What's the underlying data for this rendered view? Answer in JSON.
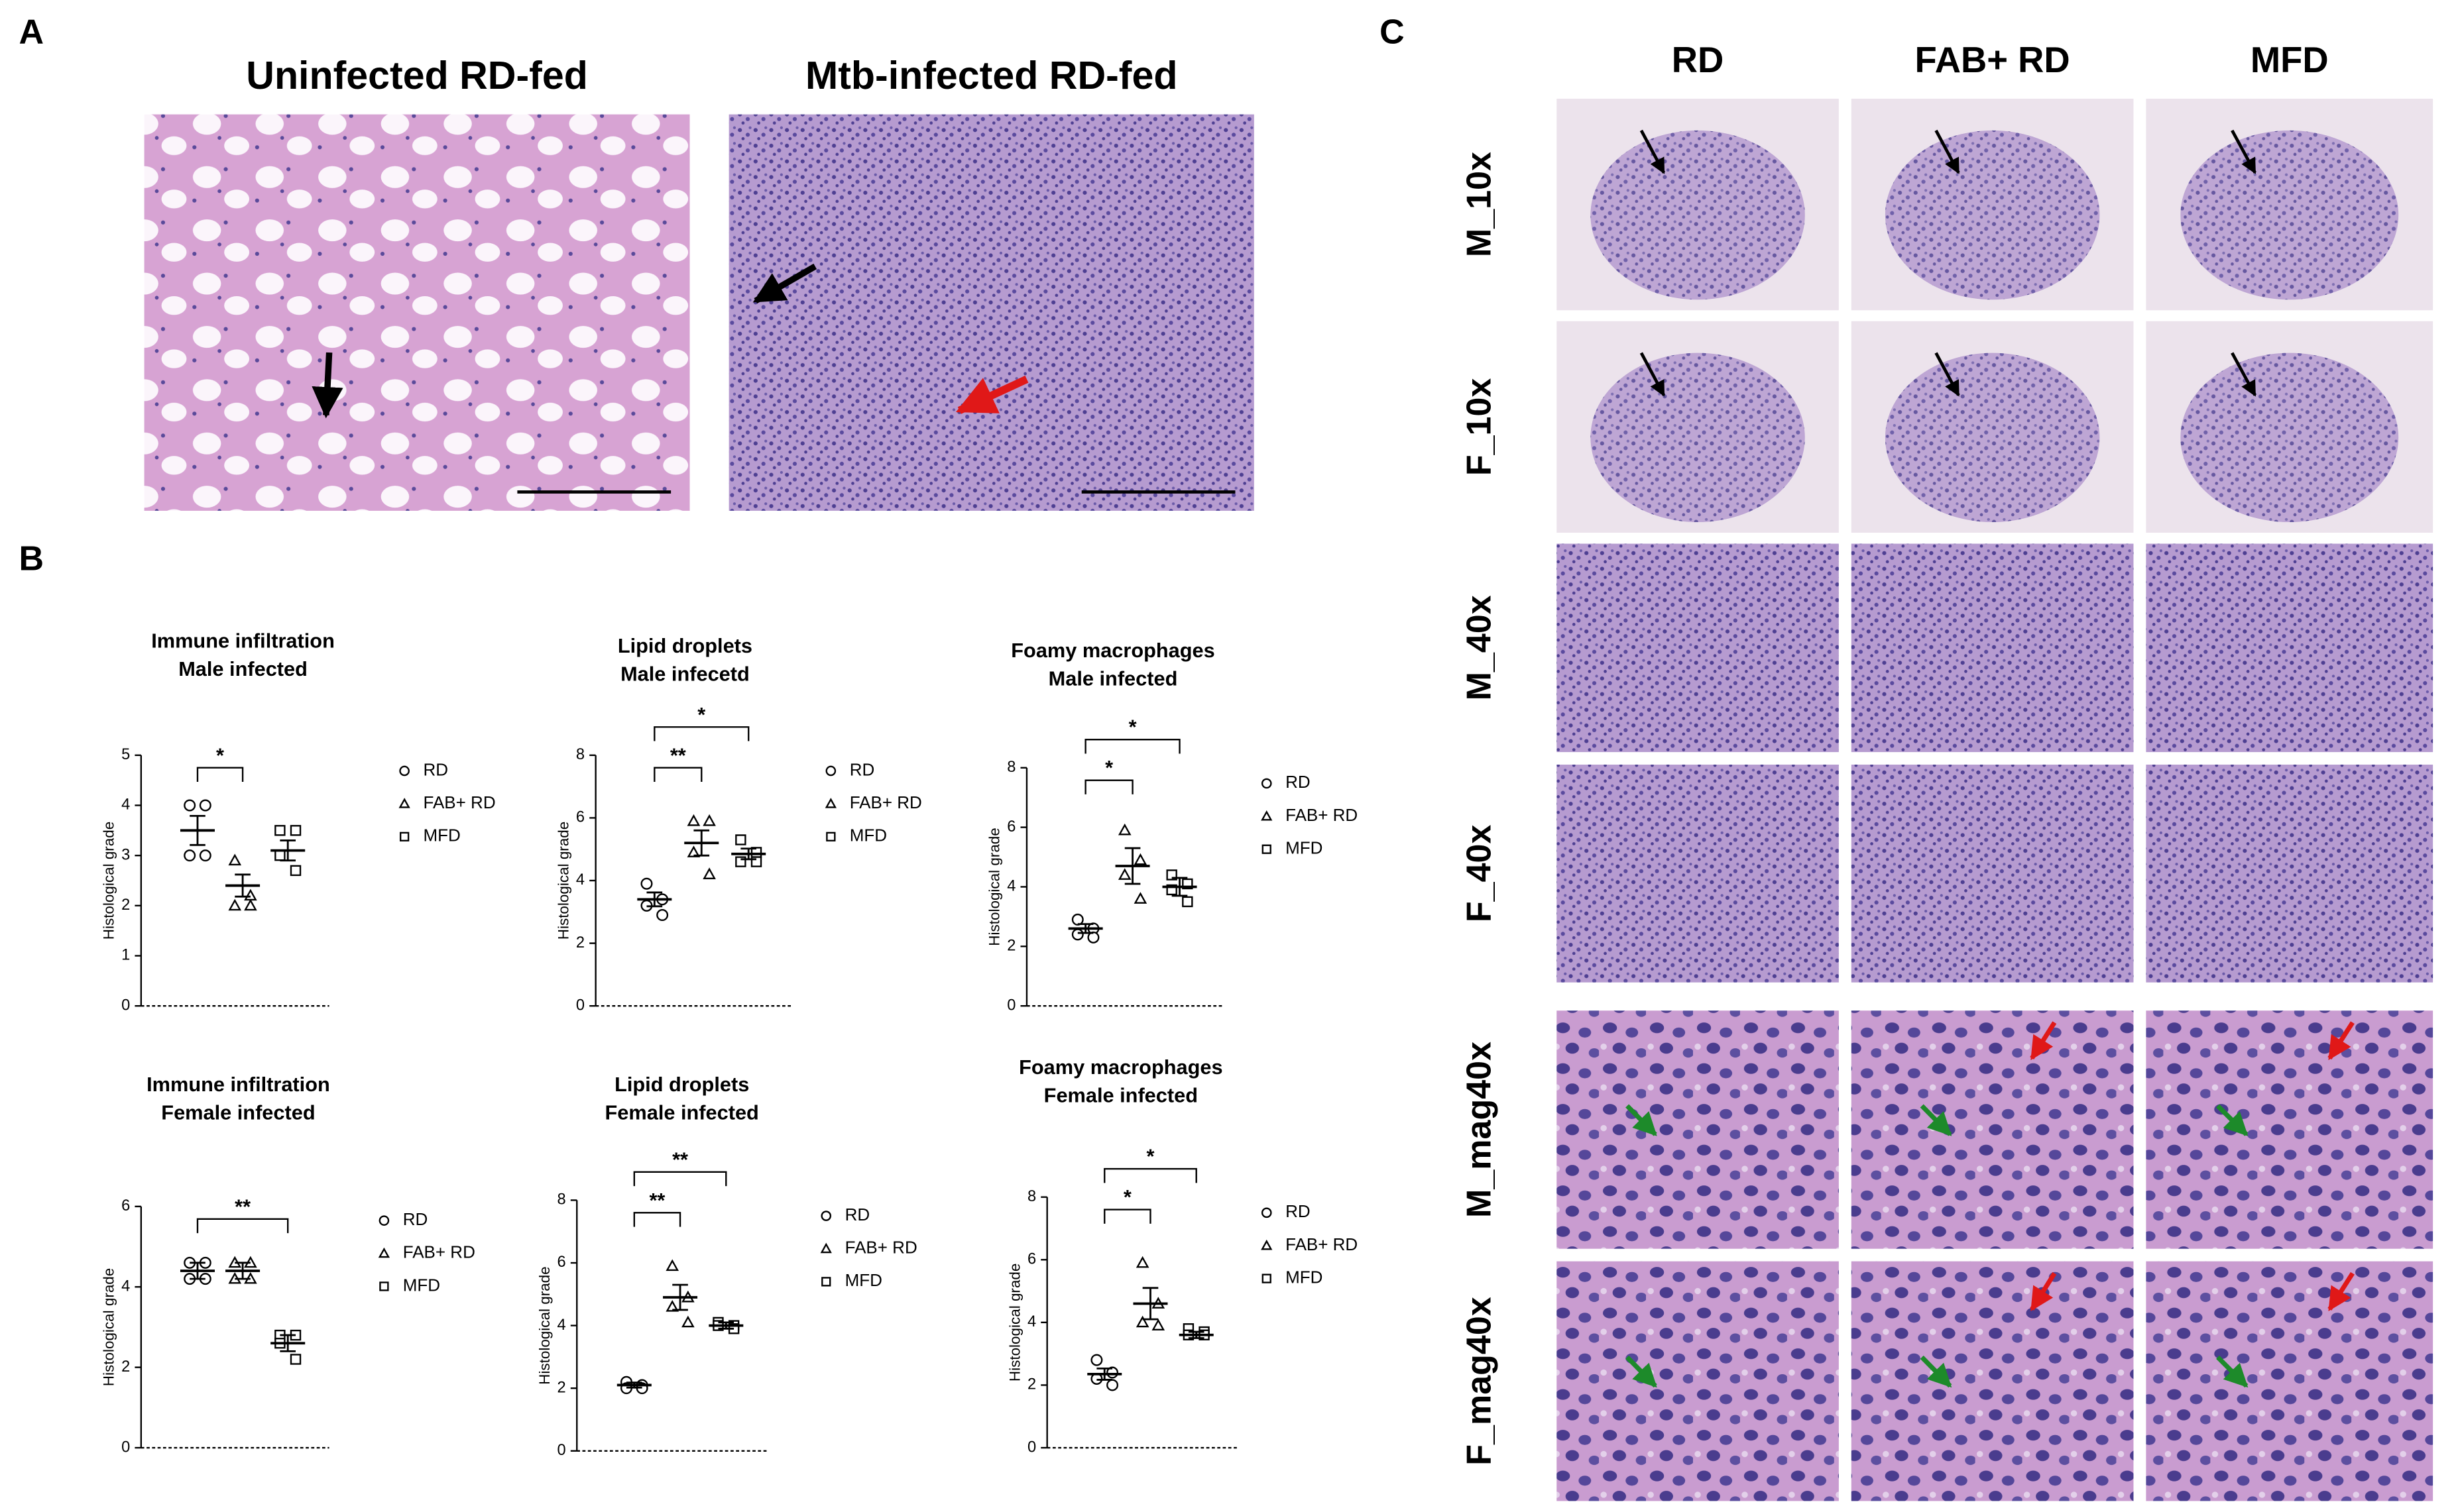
{
  "figure": {
    "panel_labels": [
      "A",
      "B",
      "C"
    ],
    "panel_a_titles": [
      "Uninfected RD-fed",
      "Mtb-infected RD-fed"
    ],
    "panel_c_columns": [
      "RD",
      "FAB+ RD",
      "MFD"
    ],
    "panel_c_rows": [
      "M_10x",
      "F_10x",
      "M_40x",
      "F_40x",
      "M_mag40x",
      "F_mag40x"
    ]
  },
  "chart_data": [
    {
      "type": "scatter",
      "title": "Immune infiltration",
      "subtitle": "Male infected",
      "y_label": "Histological grade",
      "ylim": [
        0,
        5
      ],
      "yticks": [
        0,
        1,
        2,
        3,
        4,
        5
      ],
      "groups": [
        {
          "name": "RD",
          "marker": "circle",
          "values": [
            4,
            4,
            3,
            3
          ],
          "mean": 3.5,
          "sem": 0.29
        },
        {
          "name": "FAB+ RD",
          "marker": "triangle",
          "values": [
            2.9,
            2.2,
            2,
            2
          ],
          "mean": 2.4,
          "sem": 0.22
        },
        {
          "name": "MFD",
          "marker": "square",
          "values": [
            3.5,
            3.5,
            3,
            2.7
          ],
          "mean": 3.1,
          "sem": 0.2
        }
      ],
      "comparisons": [
        {
          "groups": [
            "RD",
            "FAB+ RD"
          ],
          "label": "*"
        }
      ]
    },
    {
      "type": "scatter",
      "title": "Lipid droplets",
      "subtitle": "Male infecetd",
      "y_label": "Histological grade",
      "ylim": [
        0,
        8
      ],
      "yticks": [
        0,
        2,
        4,
        6,
        8
      ],
      "groups": [
        {
          "name": "RD",
          "marker": "circle",
          "values": [
            3.9,
            3.4,
            3.2,
            2.9
          ],
          "mean": 3.4,
          "sem": 0.22
        },
        {
          "name": "FAB+ RD",
          "marker": "triangle",
          "values": [
            5.9,
            5.9,
            4.9,
            4.2
          ],
          "mean": 5.2,
          "sem": 0.4
        },
        {
          "name": "MFD",
          "marker": "square",
          "values": [
            5.3,
            4.9,
            4.6,
            4.6
          ],
          "mean": 4.85,
          "sem": 0.17
        }
      ],
      "comparisons": [
        {
          "groups": [
            "RD",
            "FAB+ RD"
          ],
          "label": "**"
        },
        {
          "groups": [
            "RD",
            "MFD"
          ],
          "label": "*"
        }
      ]
    },
    {
      "type": "scatter",
      "title": "Foamy macrophages",
      "subtitle": "Male infected",
      "y_label": "Histological grade",
      "ylim": [
        0,
        8
      ],
      "yticks": [
        0,
        2,
        4,
        6,
        8
      ],
      "groups": [
        {
          "name": "RD",
          "marker": "circle",
          "values": [
            2.9,
            2.6,
            2.4,
            2.3
          ],
          "mean": 2.6,
          "sem": 0.15
        },
        {
          "name": "FAB+ RD",
          "marker": "triangle",
          "values": [
            5.9,
            4.9,
            4.4,
            3.6
          ],
          "mean": 4.7,
          "sem": 0.6
        },
        {
          "name": "MFD",
          "marker": "square",
          "values": [
            4.4,
            4.1,
            3.9,
            3.5
          ],
          "mean": 4,
          "sem": 0.3
        }
      ],
      "comparisons": [
        {
          "groups": [
            "RD",
            "FAB+ RD"
          ],
          "label": "*"
        },
        {
          "groups": [
            "RD",
            "MFD"
          ],
          "label": "*"
        }
      ]
    },
    {
      "type": "scatter",
      "title": "Immune infiltration",
      "subtitle": "Female infected",
      "y_label": "Histological grade",
      "ylim": [
        0,
        6
      ],
      "yticks": [
        0,
        2,
        4,
        6
      ],
      "groups": [
        {
          "name": "RD",
          "marker": "circle",
          "values": [
            4.6,
            4.6,
            4.2,
            4.2
          ],
          "mean": 4.4,
          "sem": 0.2
        },
        {
          "name": "FAB+ RD",
          "marker": "triangle",
          "values": [
            4.6,
            4.6,
            4.2,
            4.2
          ],
          "mean": 4.4,
          "sem": 0.2
        },
        {
          "name": "MFD",
          "marker": "square",
          "values": [
            2.8,
            2.8,
            2.6,
            2.2
          ],
          "mean": 2.6,
          "sem": 0.2
        }
      ],
      "comparisons": [
        {
          "groups": [
            "RD",
            "MFD"
          ],
          "label": "**"
        }
      ]
    },
    {
      "type": "scatter",
      "title": "Lipid droplets",
      "subtitle": "Female infected",
      "y_label": "Histological grade",
      "ylim": [
        0,
        8
      ],
      "yticks": [
        0,
        2,
        4,
        6,
        8
      ],
      "groups": [
        {
          "name": "RD",
          "marker": "circle",
          "values": [
            2.2,
            2.1,
            2,
            2
          ],
          "mean": 2.1,
          "sem": 0.08
        },
        {
          "name": "FAB+ RD",
          "marker": "triangle",
          "values": [
            5.9,
            4.9,
            4.6,
            4.1
          ],
          "mean": 4.9,
          "sem": 0.4
        },
        {
          "name": "MFD",
          "marker": "square",
          "values": [
            4.1,
            4,
            4,
            3.9
          ],
          "mean": 4,
          "sem": 0.1
        }
      ],
      "comparisons": [
        {
          "groups": [
            "RD",
            "FAB+ RD"
          ],
          "label": "**"
        },
        {
          "groups": [
            "RD",
            "MFD"
          ],
          "label": "**"
        }
      ]
    },
    {
      "type": "scatter",
      "title": "Foamy macrophages",
      "subtitle": "Female infected",
      "y_label": "Histological grade",
      "ylim": [
        0,
        8
      ],
      "yticks": [
        0,
        2,
        4,
        6,
        8
      ],
      "groups": [
        {
          "name": "RD",
          "marker": "circle",
          "values": [
            2.8,
            2.4,
            2.2,
            2
          ],
          "mean": 2.35,
          "sem": 0.18
        },
        {
          "name": "FAB+ RD",
          "marker": "triangle",
          "values": [
            5.9,
            4.6,
            4,
            3.9
          ],
          "mean": 4.6,
          "sem": 0.5
        },
        {
          "name": "MFD",
          "marker": "square",
          "values": [
            3.8,
            3.7,
            3.6,
            3.6
          ],
          "mean": 3.6,
          "sem": 0.1
        }
      ],
      "comparisons": [
        {
          "groups": [
            "RD",
            "FAB+ RD"
          ],
          "label": "*"
        },
        {
          "groups": [
            "RD",
            "MFD"
          ],
          "label": "*"
        }
      ]
    }
  ]
}
